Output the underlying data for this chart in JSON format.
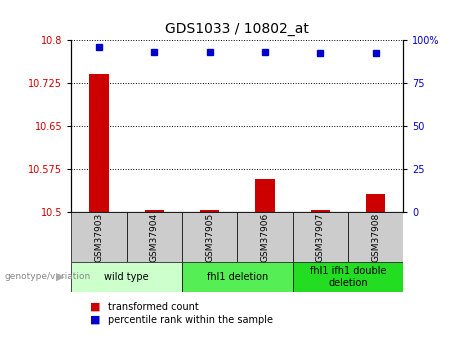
{
  "title": "GDS1033 / 10802_at",
  "samples": [
    "GSM37903",
    "GSM37904",
    "GSM37905",
    "GSM37906",
    "GSM37907",
    "GSM37908"
  ],
  "red_values": [
    10.74,
    10.503,
    10.503,
    10.557,
    10.503,
    10.532
  ],
  "blue_values": [
    96,
    93,
    93,
    93,
    92,
    92
  ],
  "ylim_left": [
    10.5,
    10.8
  ],
  "ylim_right": [
    0,
    100
  ],
  "yticks_left": [
    10.5,
    10.575,
    10.65,
    10.725,
    10.8
  ],
  "yticks_right": [
    0,
    25,
    50,
    75,
    100
  ],
  "ytick_labels_left": [
    "10.5",
    "10.575",
    "10.65",
    "10.725",
    "10.8"
  ],
  "ytick_labels_right": [
    "0",
    "25",
    "50",
    "75",
    "100%"
  ],
  "groups": [
    {
      "label": "wild type",
      "samples": [
        0,
        1
      ],
      "color": "#ccffcc"
    },
    {
      "label": "fhl1 deletion",
      "samples": [
        2,
        3
      ],
      "color": "#55ee55"
    },
    {
      "label": "fhl1 ifh1 double\ndeletion",
      "samples": [
        4,
        5
      ],
      "color": "#22dd22"
    }
  ],
  "legend_label_red": "transformed count",
  "legend_label_blue": "percentile rank within the sample",
  "genotype_label": "genotype/variation",
  "red_color": "#cc0000",
  "blue_color": "#0000cc",
  "bar_width": 0.35,
  "sample_box_color": "#cccccc"
}
